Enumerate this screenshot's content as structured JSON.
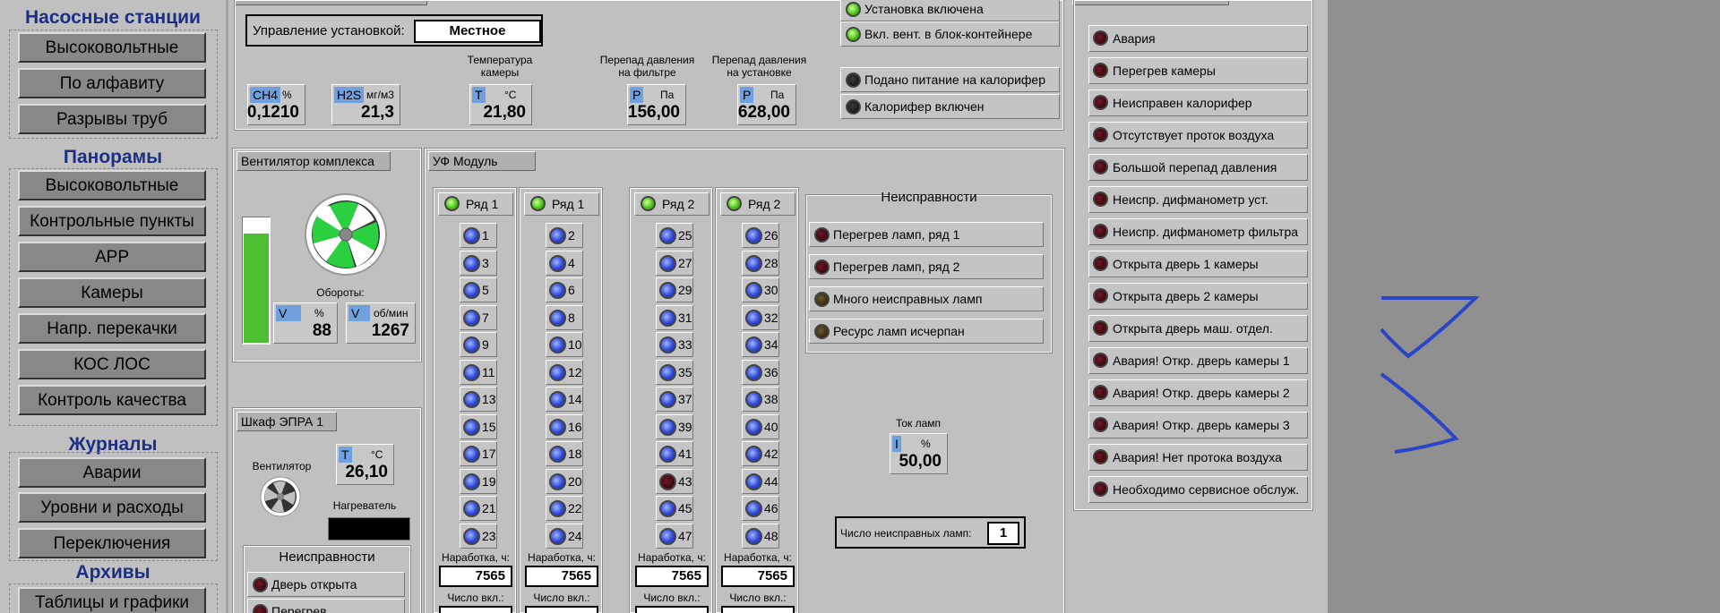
{
  "nav": {
    "sections": [
      {
        "title": "Насосные  станции",
        "items": [
          "Высоковольтные",
          "По алфавиту",
          "Разрывы труб"
        ]
      },
      {
        "title": "Панорамы",
        "items": [
          "Высоковольтные",
          "Контрольные пункты",
          "АРР",
          "Камеры",
          "Напр. перекачки",
          "КОС ЛОС",
          "Контроль качества"
        ]
      },
      {
        "title": "Журналы",
        "items": [
          "Аварии",
          "Уровни и расходы",
          "Переключения"
        ]
      },
      {
        "title": "Архивы",
        "items": [
          "Таблицы и графики"
        ]
      }
    ]
  },
  "control": {
    "label": "Управление установкой:",
    "value": "Местное"
  },
  "status": {
    "installation_on": "Установка включена",
    "vent_on": "Вкл. вент. в блок-контейнере",
    "heater_power": "Подано питание на калорифер",
    "heater_on": "Калорифер включен"
  },
  "meters": {
    "ch4": {
      "tag": "CH4",
      "unit": "%",
      "value": "0,1210"
    },
    "h2s": {
      "tag": "H2S",
      "unit": "мг/м3",
      "value": "21,3"
    },
    "temp": {
      "caption": "Температура камеры",
      "tag": "T",
      "unit": "°C",
      "value": "21,80"
    },
    "dp_filter": {
      "caption": "Перепад давления на фильтре",
      "tag": "P",
      "unit": "Па",
      "value": "156,00"
    },
    "dp_install": {
      "caption": "Перепад давления на установке",
      "tag": "P",
      "unit": "Па",
      "value": "628,00"
    }
  },
  "fan_complex": {
    "tab": "Вентилятор комплекса",
    "speed_label": "Обороты:",
    "level_percent": 88,
    "pct": {
      "tag": "V",
      "unit": "%",
      "value": "88"
    },
    "rpm": {
      "tag": "V",
      "unit": "об/мин",
      "value": "1267"
    }
  },
  "epra": {
    "tab": "Шкаф ЭПРА 1",
    "fan_label": "Вентилятор",
    "temp": {
      "tag": "T",
      "unit": "°C",
      "value": "26,10"
    },
    "heater_label": "Нагреватель",
    "faults_title": "Неисправности",
    "faults": [
      "Дверь открыта",
      "Перегрев"
    ]
  },
  "uv": {
    "tab": "УФ Модуль",
    "rows": [
      {
        "label": "Ряд 1",
        "lamps": [
          "1",
          "3",
          "5",
          "7",
          "9",
          "11",
          "13",
          "15",
          "17",
          "19",
          "21",
          "23"
        ],
        "run_label": "Наработка, ч:",
        "run": "7565",
        "count_label": "Число вкл.:"
      },
      {
        "label": "Ряд 1",
        "lamps": [
          "2",
          "4",
          "6",
          "8",
          "10",
          "12",
          "14",
          "16",
          "18",
          "20",
          "22",
          "24"
        ],
        "run_label": "Наработка, ч:",
        "run": "7565",
        "count_label": "Число вкл.:"
      },
      {
        "label": "Ряд 2",
        "lamps": [
          "25",
          "27",
          "29",
          "31",
          "33",
          "35",
          "37",
          "39",
          "41",
          "43",
          "45",
          "47"
        ],
        "run_label": "Наработка, ч:",
        "run": "7565",
        "count_label": "Число вкл.:"
      },
      {
        "label": "Ряд 2",
        "lamps": [
          "26",
          "28",
          "30",
          "32",
          "34",
          "36",
          "38",
          "40",
          "42",
          "44",
          "46",
          "48"
        ],
        "run_label": "Наработка, ч:",
        "run": "7565",
        "count_label": "Число вкл.:"
      }
    ],
    "faults_title": "Неисправности",
    "faults": [
      "Перегрев ламп, ряд 1",
      "Перегрев ламп, ряд 2",
      "Много неисправных ламп",
      "Ресурс ламп исчерпан"
    ],
    "current": {
      "caption": "Ток ламп",
      "tag": "I",
      "unit": "%",
      "value": "50,00"
    },
    "bad_lamps": {
      "label": "Число неисправных ламп:",
      "value": "1"
    }
  },
  "alarms": [
    "Авария",
    "Перегрев камеры",
    "Неисправен калорифер",
    "Отсутствует проток воздуха",
    "Большой перепад давления",
    "Неиспр. дифманометр уст.",
    "Неиспр. дифманометр фильтра",
    "Открыта дверь 1 камеры",
    "Открыта дверь 2 камеры",
    "Открыта дверь маш. отдел.",
    "Авария! Откр. дверь камеры 1",
    "Авария! Откр. дверь камеры 2",
    "Авария! Откр. дверь камеры 3",
    "Авария! Нет протока воздуха",
    "Необходимо сервисное обслуж."
  ],
  "colors": {
    "nav_title": "#1c2f86",
    "led_green": "#40c010",
    "led_blue": "#3048d8",
    "led_alarm": "#2b0000",
    "fan_bar": "#4cc030"
  }
}
